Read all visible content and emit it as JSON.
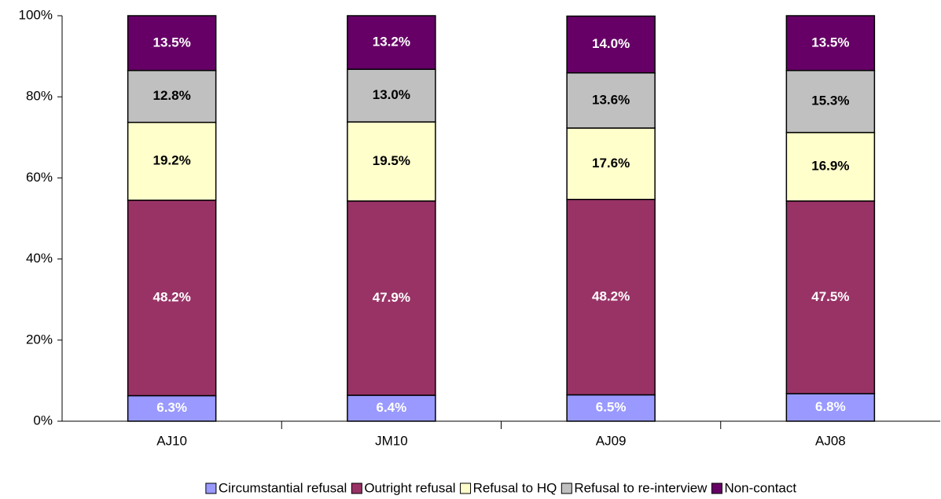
{
  "chart_data": {
    "type": "stacked_bar",
    "categories": [
      "AJ10",
      "JM10",
      "AJ09",
      "AJ08"
    ],
    "series": [
      {
        "name": "Circumstantial refusal",
        "color": "#9999ff",
        "label_color": "#ffffff",
        "values": [
          6.3,
          6.4,
          6.5,
          6.8
        ],
        "value_labels": [
          "6.3%",
          "6.4%",
          "6.5%",
          "6.8%"
        ]
      },
      {
        "name": "Outright refusal",
        "color": "#993366",
        "label_color": "#ffffff",
        "values": [
          48.2,
          47.9,
          48.2,
          47.5
        ],
        "value_labels": [
          "48.2%",
          "47.9%",
          "48.2%",
          "47.5%"
        ]
      },
      {
        "name": "Refusal to HQ",
        "color": "#ffffcc",
        "label_color": "#000000",
        "values": [
          19.2,
          19.5,
          17.6,
          16.9
        ],
        "value_labels": [
          "19.2%",
          "19.5%",
          "17.6%",
          "16.9%"
        ]
      },
      {
        "name": "Refusal to re-interview",
        "color": "#c0c0c0",
        "label_color": "#000000",
        "values": [
          12.8,
          13.0,
          13.6,
          15.3
        ],
        "value_labels": [
          "12.8%",
          "13.0%",
          "13.6%",
          "15.3%"
        ]
      },
      {
        "name": "Non-contact",
        "color": "#660066",
        "label_color": "#ffffff",
        "values": [
          13.5,
          13.2,
          14.0,
          13.5
        ],
        "value_labels": [
          "13.5%",
          "13.2%",
          "14.0%",
          "13.5%"
        ]
      }
    ],
    "ylim": [
      0,
      100
    ],
    "yticks": [
      {
        "value": 0,
        "label": "0%"
      },
      {
        "value": 20,
        "label": "20%"
      },
      {
        "value": 40,
        "label": "40%"
      },
      {
        "value": 60,
        "label": "60%"
      },
      {
        "value": 80,
        "label": "80%"
      },
      {
        "value": 100,
        "label": "100%"
      }
    ],
    "legend": "bottom"
  }
}
